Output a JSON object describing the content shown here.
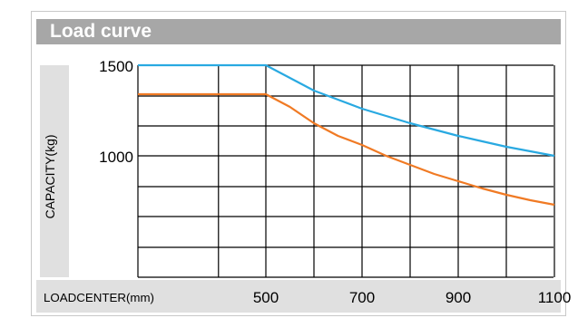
{
  "chart_data": {
    "type": "line",
    "title": "Load curve",
    "xlabel": "LOADCENTER(mm)",
    "ylabel": "CAPACITY(kg)",
    "xlim": [
      230,
      1100
    ],
    "ylim": [
      500,
      1500
    ],
    "x_ticks": [
      "500",
      "700",
      "900",
      "1100"
    ],
    "y_ticks": [
      "1500",
      "1000"
    ],
    "grid": true,
    "series": [
      {
        "color": "#29a9e1",
        "x": [
          230,
          500,
          550,
          600,
          650,
          700,
          750,
          800,
          850,
          900,
          950,
          1000,
          1050,
          1100
        ],
        "y": [
          1500,
          1500,
          1430,
          1360,
          1310,
          1260,
          1220,
          1180,
          1145,
          1110,
          1080,
          1050,
          1025,
          1000
        ]
      },
      {
        "color": "#f07a24",
        "x": [
          230,
          500,
          550,
          600,
          650,
          700,
          750,
          800,
          850,
          900,
          950,
          1000,
          1050,
          1100
        ],
        "y": [
          1340,
          1340,
          1270,
          1180,
          1110,
          1060,
          1000,
          950,
          900,
          860,
          820,
          785,
          755,
          730
        ]
      }
    ]
  },
  "colors": {
    "header": "#a7a7a7",
    "band": "#e0e0e0",
    "grid": "#000000"
  }
}
